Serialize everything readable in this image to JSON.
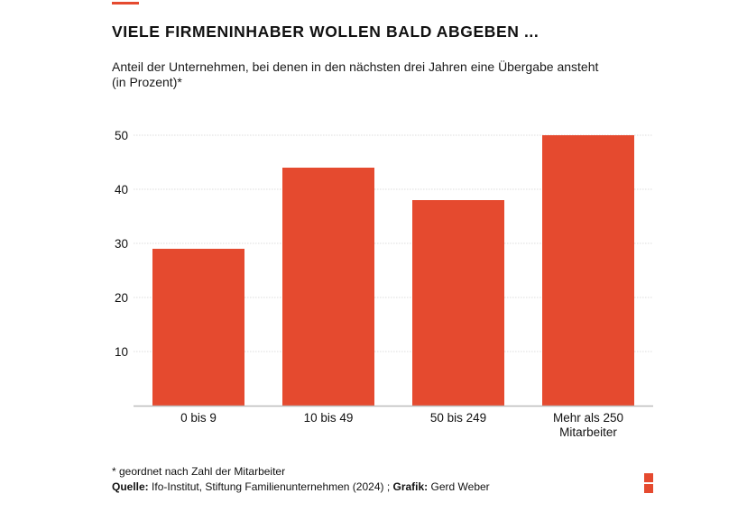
{
  "header": {
    "title": "VIELE FIRMENINHABER WOLLEN BALD ABGEBEN ...",
    "subtitle_line1": "Anteil der Unternehmen, bei denen in den nächsten drei Jahren eine Übergabe ansteht",
    "subtitle_line2": "(in Prozent)*"
  },
  "chart_data": {
    "type": "bar",
    "title": "VIELE FIRMENINHABER WOLLEN BALD ABGEBEN ...",
    "subtitle": "Anteil der Unternehmen, bei denen in den nächsten drei Jahren eine Übergabe ansteht (in Prozent)*",
    "categories": [
      [
        "0 bis 9"
      ],
      [
        "10 bis 49"
      ],
      [
        "50 bis 249"
      ],
      [
        "Mehr als 250",
        "Mitarbeiter"
      ]
    ],
    "values": [
      29,
      44,
      38,
      50
    ],
    "ylim": [
      0,
      50
    ],
    "yticks": [
      10,
      20,
      30,
      40,
      50
    ],
    "ytick_labels": [
      "10",
      "20",
      "30",
      "40",
      "50"
    ],
    "grid": true,
    "bar_color": "#e54a2f",
    "grid_color": "#dcdcdc",
    "axis_color": "#bdbdbd"
  },
  "footer": {
    "note": "* geordnet nach Zahl der Mitarbeiter",
    "source_label": "Quelle:",
    "source_text": " Ifo-Institut, Stiftung Familienunternehmen (2024) ; ",
    "graphic_label": "Grafik:",
    "graphic_text": " Gerd Weber"
  },
  "brand": {
    "accent_color": "#e54a2f",
    "logo_icon": "two-red-squares-logo-icon"
  }
}
